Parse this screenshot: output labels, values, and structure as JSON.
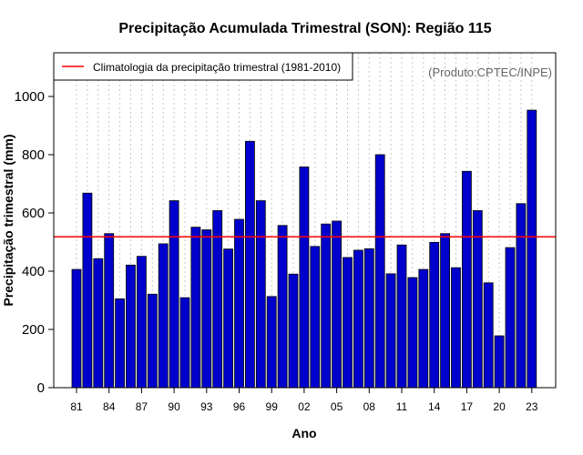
{
  "chart_data": {
    "type": "bar",
    "title": "Precipitação Acumulada Trimestral (SON): Região 115",
    "xlabel": "Ano",
    "ylabel": "Precipitação trimestral (mm)",
    "ylim": [
      0,
      1150
    ],
    "yticks": [
      0,
      200,
      400,
      600,
      800,
      1000
    ],
    "xtick_labels": [
      "81",
      "84",
      "87",
      "90",
      "93",
      "96",
      "99",
      "02",
      "05",
      "08",
      "11",
      "14",
      "17",
      "20",
      "23"
    ],
    "xtick_years": [
      1981,
      1984,
      1987,
      1990,
      1993,
      1996,
      1999,
      2002,
      2005,
      2008,
      2011,
      2014,
      2017,
      2020,
      2023
    ],
    "grid": true,
    "years": [
      1981,
      1982,
      1983,
      1984,
      1985,
      1986,
      1987,
      1988,
      1989,
      1990,
      1991,
      1992,
      1993,
      1994,
      1995,
      1996,
      1997,
      1998,
      1999,
      2000,
      2001,
      2002,
      2003,
      2004,
      2005,
      2006,
      2007,
      2008,
      2009,
      2010,
      2011,
      2012,
      2013,
      2014,
      2015,
      2016,
      2017,
      2018,
      2019,
      2020,
      2021,
      2022,
      2023
    ],
    "values": [
      406,
      668,
      443,
      529,
      305,
      421,
      451,
      321,
      494,
      642,
      309,
      551,
      542,
      608,
      476,
      578,
      846,
      642,
      313,
      557,
      390,
      758,
      485,
      562,
      572,
      447,
      472,
      477,
      800,
      391,
      490,
      378,
      406,
      499,
      529,
      412,
      743,
      608,
      360,
      178,
      481,
      632,
      953
    ],
    "bar_color": "#0000cc",
    "climatology": {
      "label": "Climatologia da precipitação trimestral (1981-2010)",
      "value": 518,
      "color": "#ff0000"
    },
    "legend_position": "top-left",
    "source_text": "(Produto:CPTEC/INPE)"
  }
}
